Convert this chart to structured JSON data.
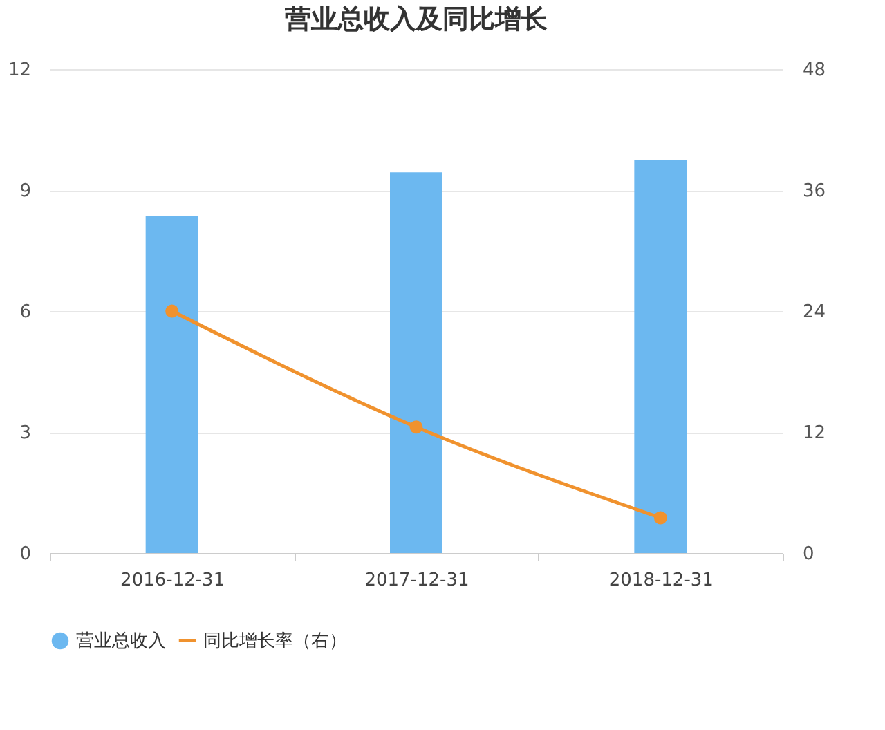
{
  "chart_data": {
    "type": "bar",
    "title": "营业总收入及同比增长",
    "categories": [
      "2016-12-31",
      "2017-12-31",
      "2018-12-31"
    ],
    "series": [
      {
        "name": "营业总收入",
        "color": "#6cb8f0",
        "values": [
          8.36,
          9.44,
          9.75
        ]
      },
      {
        "name": "同比增长率（右）",
        "type": "line",
        "axis": "y2",
        "color": "#f0922e",
        "values": [
          24.0,
          12.5,
          3.5
        ],
        "marker": "circle"
      }
    ],
    "ylim": [
      0,
      12
    ],
    "yticks": [
      0,
      3,
      6,
      9,
      12
    ],
    "y2lim": [
      0,
      48
    ],
    "y2ticks": [
      0,
      12,
      24,
      36,
      48
    ],
    "grid": "y",
    "legend": "bottom"
  }
}
